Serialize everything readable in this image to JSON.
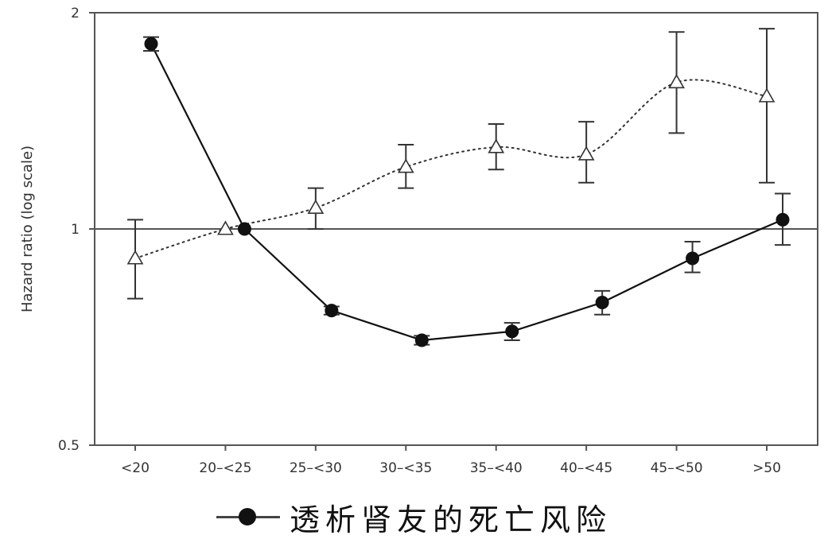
{
  "chart_data": {
    "type": "line",
    "y_scale": "log",
    "ylabel": "Hazard ratio (log scale)",
    "ylim": [
      0.5,
      2
    ],
    "yticks": [
      {
        "value": 0.5,
        "label": "0.5"
      },
      {
        "value": 1,
        "label": "1"
      },
      {
        "value": 2,
        "label": "2"
      }
    ],
    "categories": [
      "<20",
      "20–<25",
      "25–<30",
      "30–<35",
      "35–<40",
      "40–<45",
      "45–<50",
      ">50"
    ],
    "reference_line": 1,
    "grid": false,
    "series": [
      {
        "name": "透析肾友的死亡风险",
        "marker": "filled-circle",
        "line": "solid",
        "color": "#111111",
        "values": [
          1.81,
          1.0,
          0.77,
          0.7,
          0.72,
          0.79,
          0.91,
          1.03
        ],
        "err_low": [
          1.77,
          1.0,
          0.76,
          0.69,
          0.7,
          0.76,
          0.87,
          0.95
        ],
        "err_high": [
          1.85,
          1.0,
          0.78,
          0.71,
          0.74,
          0.82,
          0.96,
          1.12
        ]
      },
      {
        "name": "",
        "marker": "open-triangle",
        "line": "dotted",
        "color": "#333333",
        "values": [
          0.91,
          1.0,
          1.07,
          1.22,
          1.3,
          1.27,
          1.6,
          1.53
        ],
        "err_low": [
          0.8,
          1.0,
          1.0,
          1.14,
          1.21,
          1.16,
          1.36,
          1.16
        ],
        "err_high": [
          1.03,
          1.0,
          1.14,
          1.31,
          1.4,
          1.41,
          1.88,
          1.9
        ]
      }
    ],
    "legend": {
      "position": "bottom",
      "label": "透析肾友的死亡风险"
    }
  }
}
